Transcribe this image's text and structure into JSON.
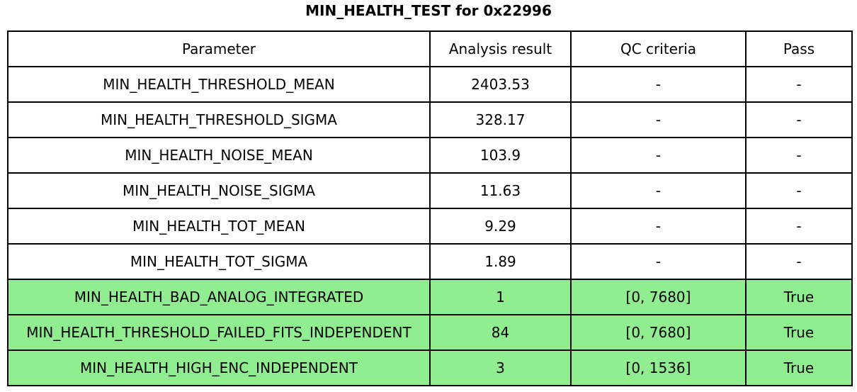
{
  "title": "MIN_HEALTH_TEST for 0x22996",
  "chart_data": {
    "type": "table",
    "title": "MIN_HEALTH_TEST for 0x22996",
    "columns": [
      "Parameter",
      "Analysis result",
      "QC criteria",
      "Pass"
    ],
    "rows": [
      [
        "MIN_HEALTH_THRESHOLD_MEAN",
        "2403.53",
        "-",
        "-"
      ],
      [
        "MIN_HEALTH_THRESHOLD_SIGMA",
        "328.17",
        "-",
        "-"
      ],
      [
        "MIN_HEALTH_NOISE_MEAN",
        "103.9",
        "-",
        "-"
      ],
      [
        "MIN_HEALTH_NOISE_SIGMA",
        "11.63",
        "-",
        "-"
      ],
      [
        "MIN_HEALTH_TOT_MEAN",
        "9.29",
        "-",
        "-"
      ],
      [
        "MIN_HEALTH_TOT_SIGMA",
        "1.89",
        "-",
        "-"
      ],
      [
        "MIN_HEALTH_BAD_ANALOG_INTEGRATED",
        "1",
        "[0, 7680]",
        "True"
      ],
      [
        "MIN_HEALTH_THRESHOLD_FAILED_FITS_INDEPENDENT",
        "84",
        "[0, 7680]",
        "True"
      ],
      [
        "MIN_HEALTH_HIGH_ENC_INDEPENDENT",
        "3",
        "[0, 1536]",
        "True"
      ]
    ],
    "row_highlight": [
      false,
      false,
      false,
      false,
      false,
      false,
      true,
      true,
      true
    ],
    "legend_position": "none",
    "grid": true
  },
  "colors": {
    "pass_highlight": "#90EE90",
    "border": "#000000",
    "text": "#000000",
    "background": "#FFFFFF"
  }
}
